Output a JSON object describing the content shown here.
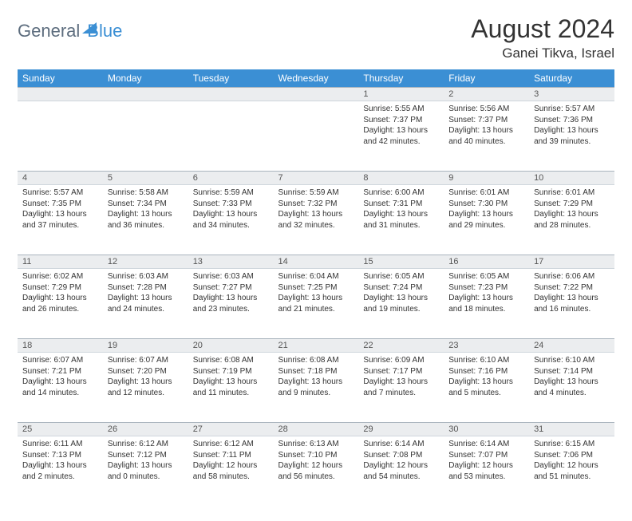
{
  "logo": {
    "word1": "General",
    "word2": "Blue"
  },
  "title": "August 2024",
  "location": "Ganei Tikva, Israel",
  "colors": {
    "header_bg": "#3b8fd4",
    "header_fg": "#ffffff",
    "daynum_bg": "#ebedef",
    "border": "#cfd6dc",
    "page_bg": "#ffffff",
    "text": "#333333",
    "logo_gray": "#5d6d7e"
  },
  "day_labels": [
    "Sunday",
    "Monday",
    "Tuesday",
    "Wednesday",
    "Thursday",
    "Friday",
    "Saturday"
  ],
  "weeks": [
    {
      "nums": [
        "",
        "",
        "",
        "",
        "1",
        "2",
        "3"
      ],
      "cells": [
        {
          "sunrise": "",
          "sunset": "",
          "daylight": ""
        },
        {
          "sunrise": "",
          "sunset": "",
          "daylight": ""
        },
        {
          "sunrise": "",
          "sunset": "",
          "daylight": ""
        },
        {
          "sunrise": "",
          "sunset": "",
          "daylight": ""
        },
        {
          "sunrise": "Sunrise: 5:55 AM",
          "sunset": "Sunset: 7:37 PM",
          "daylight": "Daylight: 13 hours and 42 minutes."
        },
        {
          "sunrise": "Sunrise: 5:56 AM",
          "sunset": "Sunset: 7:37 PM",
          "daylight": "Daylight: 13 hours and 40 minutes."
        },
        {
          "sunrise": "Sunrise: 5:57 AM",
          "sunset": "Sunset: 7:36 PM",
          "daylight": "Daylight: 13 hours and 39 minutes."
        }
      ]
    },
    {
      "nums": [
        "4",
        "5",
        "6",
        "7",
        "8",
        "9",
        "10"
      ],
      "cells": [
        {
          "sunrise": "Sunrise: 5:57 AM",
          "sunset": "Sunset: 7:35 PM",
          "daylight": "Daylight: 13 hours and 37 minutes."
        },
        {
          "sunrise": "Sunrise: 5:58 AM",
          "sunset": "Sunset: 7:34 PM",
          "daylight": "Daylight: 13 hours and 36 minutes."
        },
        {
          "sunrise": "Sunrise: 5:59 AM",
          "sunset": "Sunset: 7:33 PM",
          "daylight": "Daylight: 13 hours and 34 minutes."
        },
        {
          "sunrise": "Sunrise: 5:59 AM",
          "sunset": "Sunset: 7:32 PM",
          "daylight": "Daylight: 13 hours and 32 minutes."
        },
        {
          "sunrise": "Sunrise: 6:00 AM",
          "sunset": "Sunset: 7:31 PM",
          "daylight": "Daylight: 13 hours and 31 minutes."
        },
        {
          "sunrise": "Sunrise: 6:01 AM",
          "sunset": "Sunset: 7:30 PM",
          "daylight": "Daylight: 13 hours and 29 minutes."
        },
        {
          "sunrise": "Sunrise: 6:01 AM",
          "sunset": "Sunset: 7:29 PM",
          "daylight": "Daylight: 13 hours and 28 minutes."
        }
      ]
    },
    {
      "nums": [
        "11",
        "12",
        "13",
        "14",
        "15",
        "16",
        "17"
      ],
      "cells": [
        {
          "sunrise": "Sunrise: 6:02 AM",
          "sunset": "Sunset: 7:29 PM",
          "daylight": "Daylight: 13 hours and 26 minutes."
        },
        {
          "sunrise": "Sunrise: 6:03 AM",
          "sunset": "Sunset: 7:28 PM",
          "daylight": "Daylight: 13 hours and 24 minutes."
        },
        {
          "sunrise": "Sunrise: 6:03 AM",
          "sunset": "Sunset: 7:27 PM",
          "daylight": "Daylight: 13 hours and 23 minutes."
        },
        {
          "sunrise": "Sunrise: 6:04 AM",
          "sunset": "Sunset: 7:25 PM",
          "daylight": "Daylight: 13 hours and 21 minutes."
        },
        {
          "sunrise": "Sunrise: 6:05 AM",
          "sunset": "Sunset: 7:24 PM",
          "daylight": "Daylight: 13 hours and 19 minutes."
        },
        {
          "sunrise": "Sunrise: 6:05 AM",
          "sunset": "Sunset: 7:23 PM",
          "daylight": "Daylight: 13 hours and 18 minutes."
        },
        {
          "sunrise": "Sunrise: 6:06 AM",
          "sunset": "Sunset: 7:22 PM",
          "daylight": "Daylight: 13 hours and 16 minutes."
        }
      ]
    },
    {
      "nums": [
        "18",
        "19",
        "20",
        "21",
        "22",
        "23",
        "24"
      ],
      "cells": [
        {
          "sunrise": "Sunrise: 6:07 AM",
          "sunset": "Sunset: 7:21 PM",
          "daylight": "Daylight: 13 hours and 14 minutes."
        },
        {
          "sunrise": "Sunrise: 6:07 AM",
          "sunset": "Sunset: 7:20 PM",
          "daylight": "Daylight: 13 hours and 12 minutes."
        },
        {
          "sunrise": "Sunrise: 6:08 AM",
          "sunset": "Sunset: 7:19 PM",
          "daylight": "Daylight: 13 hours and 11 minutes."
        },
        {
          "sunrise": "Sunrise: 6:08 AM",
          "sunset": "Sunset: 7:18 PM",
          "daylight": "Daylight: 13 hours and 9 minutes."
        },
        {
          "sunrise": "Sunrise: 6:09 AM",
          "sunset": "Sunset: 7:17 PM",
          "daylight": "Daylight: 13 hours and 7 minutes."
        },
        {
          "sunrise": "Sunrise: 6:10 AM",
          "sunset": "Sunset: 7:16 PM",
          "daylight": "Daylight: 13 hours and 5 minutes."
        },
        {
          "sunrise": "Sunrise: 6:10 AM",
          "sunset": "Sunset: 7:14 PM",
          "daylight": "Daylight: 13 hours and 4 minutes."
        }
      ]
    },
    {
      "nums": [
        "25",
        "26",
        "27",
        "28",
        "29",
        "30",
        "31"
      ],
      "cells": [
        {
          "sunrise": "Sunrise: 6:11 AM",
          "sunset": "Sunset: 7:13 PM",
          "daylight": "Daylight: 13 hours and 2 minutes."
        },
        {
          "sunrise": "Sunrise: 6:12 AM",
          "sunset": "Sunset: 7:12 PM",
          "daylight": "Daylight: 13 hours and 0 minutes."
        },
        {
          "sunrise": "Sunrise: 6:12 AM",
          "sunset": "Sunset: 7:11 PM",
          "daylight": "Daylight: 12 hours and 58 minutes."
        },
        {
          "sunrise": "Sunrise: 6:13 AM",
          "sunset": "Sunset: 7:10 PM",
          "daylight": "Daylight: 12 hours and 56 minutes."
        },
        {
          "sunrise": "Sunrise: 6:14 AM",
          "sunset": "Sunset: 7:08 PM",
          "daylight": "Daylight: 12 hours and 54 minutes."
        },
        {
          "sunrise": "Sunrise: 6:14 AM",
          "sunset": "Sunset: 7:07 PM",
          "daylight": "Daylight: 12 hours and 53 minutes."
        },
        {
          "sunrise": "Sunrise: 6:15 AM",
          "sunset": "Sunset: 7:06 PM",
          "daylight": "Daylight: 12 hours and 51 minutes."
        }
      ]
    }
  ]
}
